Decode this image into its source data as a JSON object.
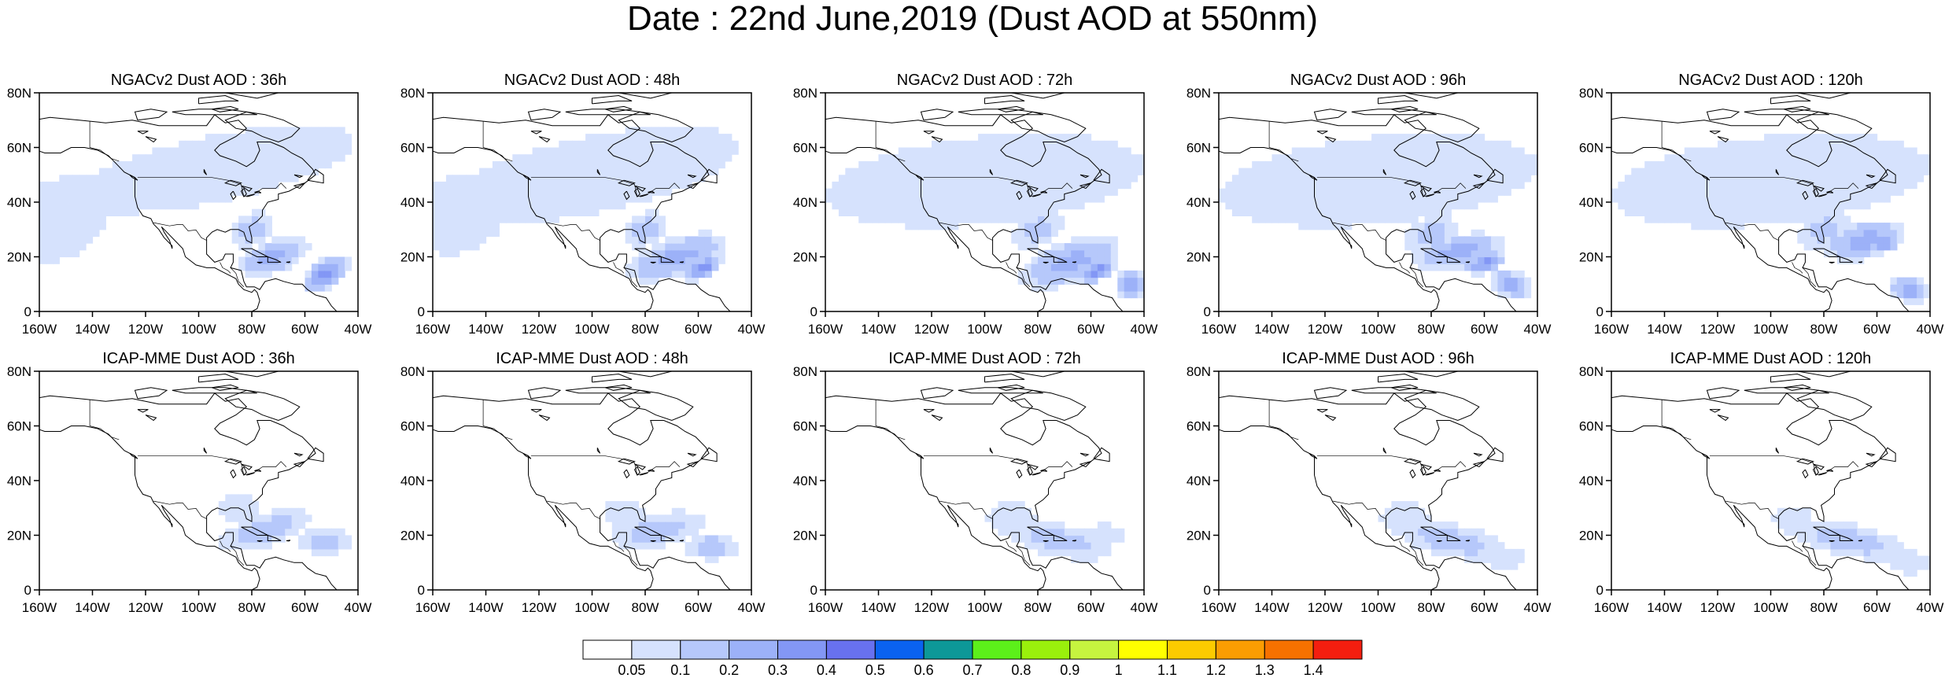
{
  "title": "Date : 22nd June,2019 (Dust AOD at 550nm)",
  "lat_labels": [
    "80N",
    "60N",
    "40N",
    "20N",
    "0"
  ],
  "lon_labels": [
    "160W",
    "140W",
    "120W",
    "100W",
    "80W",
    "60W",
    "40W"
  ],
  "map_extent": {
    "lon": [
      -160,
      -40
    ],
    "lat": [
      0,
      80
    ]
  },
  "colors": {
    "coastline": "#000000",
    "palette": [
      "#ffffff",
      "#d6e2fd",
      "#b6c8fb",
      "#9cb1f8",
      "#8397f5",
      "#6871ef",
      "#0a62f0",
      "#0d9898",
      "#5cf01a",
      "#9af00c",
      "#c6f43f",
      "#ffff00",
      "#fccb00",
      "#fb9d02",
      "#f67100",
      "#f41e0f"
    ]
  },
  "rows": [
    {
      "model": "NGACv2",
      "panels": [
        {
          "title": "NGACv2 Dust AOD : 36h",
          "lead": "36h",
          "plumes": [
            [
              -95,
              52,
              55,
              12,
              1,
              0.2
            ],
            [
              -152,
              34,
              20,
              14,
              1,
              0.5
            ],
            [
              -72,
              20,
              14,
              6,
              3,
              0.3
            ],
            [
              -52,
              14,
              10,
              5,
              4,
              0.6
            ],
            [
              -80,
              30,
              9,
              6,
              2,
              0.4
            ]
          ]
        },
        {
          "title": "NGACv2 Dust AOD : 48h",
          "lead": "48h",
          "plumes": [
            [
              -100,
              50,
              56,
              14,
              1,
              0.2
            ],
            [
              -150,
              36,
              20,
              14,
              1,
              0.4
            ],
            [
              -68,
              20,
              20,
              7,
              3,
              0.3
            ],
            [
              -58,
              16,
              8,
              4,
              4,
              0.5
            ],
            [
              -80,
              30,
              9,
              6,
              2,
              0.4
            ]
          ]
        },
        {
          "title": "NGACv2 Dust AOD : 72h",
          "lead": "72h",
          "plumes": [
            [
              -100,
              48,
              60,
              16,
              1,
              0.1
            ],
            [
              -68,
              18,
              20,
              8,
              3,
              0.3
            ],
            [
              -58,
              15,
              8,
              4,
              4,
              0.4
            ],
            [
              -80,
              30,
              10,
              6,
              2,
              0.4
            ],
            [
              -45,
              10,
              6,
              6,
              3,
              -0.3
            ]
          ]
        },
        {
          "title": "NGACv2 Dust AOD : 96h",
          "lead": "96h",
          "plumes": [
            [
              -100,
              48,
              60,
              16,
              1,
              0.1
            ],
            [
              -70,
              22,
              18,
              6,
              3,
              0.2
            ],
            [
              -60,
              18,
              8,
              4,
              4,
              0.3
            ],
            [
              -50,
              10,
              8,
              5,
              3,
              -0.3
            ],
            [
              -80,
              28,
              10,
              6,
              2,
              0.3
            ]
          ]
        },
        {
          "title": "NGACv2 Dust AOD : 120h",
          "lead": "120h",
          "plumes": [
            [
              -100,
              48,
              60,
              16,
              1,
              0.1
            ],
            [
              -65,
              26,
              16,
              7,
              3,
              0.2
            ],
            [
              -58,
              25,
              6,
              4,
              4,
              0.2
            ],
            [
              -48,
              8,
              8,
              5,
              3,
              -0.2
            ],
            [
              -80,
              30,
              10,
              6,
              2,
              0.4
            ]
          ]
        }
      ]
    },
    {
      "model": "ICAP-MME",
      "panels": [
        {
          "title": "ICAP-MME Dust AOD : 36h",
          "lead": "36h",
          "plumes": [
            [
              -75,
              22,
              18,
              6,
              2,
              0.3
            ],
            [
              -52,
              18,
              10,
              5,
              2,
              0.0
            ],
            [
              -85,
              30,
              8,
              5,
              1,
              0.0
            ]
          ]
        },
        {
          "title": "ICAP-MME Dust AOD : 48h",
          "lead": "48h",
          "plumes": [
            [
              -75,
              22,
              18,
              6,
              2,
              0.2
            ],
            [
              -55,
              16,
              10,
              5,
              2,
              0.0
            ],
            [
              -88,
              28,
              8,
              5,
              1,
              0.0
            ]
          ]
        },
        {
          "title": "ICAP-MME Dust AOD : 72h",
          "lead": "72h",
          "plumes": [
            [
              -72,
              18,
              20,
              6,
              2,
              -0.2
            ],
            [
              -90,
              26,
              9,
              6,
              1,
              0.0
            ],
            [
              -55,
              20,
              8,
              4,
              1,
              0.0
            ]
          ]
        },
        {
          "title": "ICAP-MME Dust AOD : 96h",
          "lead": "96h",
          "plumes": [
            [
              -72,
              18,
              22,
              6,
              2,
              -0.2
            ],
            [
              -90,
              26,
              9,
              6,
              1,
              0.0
            ],
            [
              -52,
              12,
              8,
              4,
              1,
              0.0
            ]
          ]
        },
        {
          "title": "ICAP-MME Dust AOD : 120h",
          "lead": "120h",
          "plumes": [
            [
              -70,
              18,
              22,
              6,
              2,
              -0.2
            ],
            [
              -92,
              26,
              7,
              5,
              1,
              0.0
            ],
            [
              -48,
              10,
              8,
              4,
              1,
              0.0
            ]
          ]
        }
      ]
    }
  ],
  "colorbar": {
    "labels": [
      "0.05",
      "0.1",
      "0.2",
      "0.3",
      "0.4",
      "0.5",
      "0.6",
      "0.7",
      "0.8",
      "0.9",
      "1",
      "1.1",
      "1.2",
      "1.3",
      "1.4"
    ]
  }
}
